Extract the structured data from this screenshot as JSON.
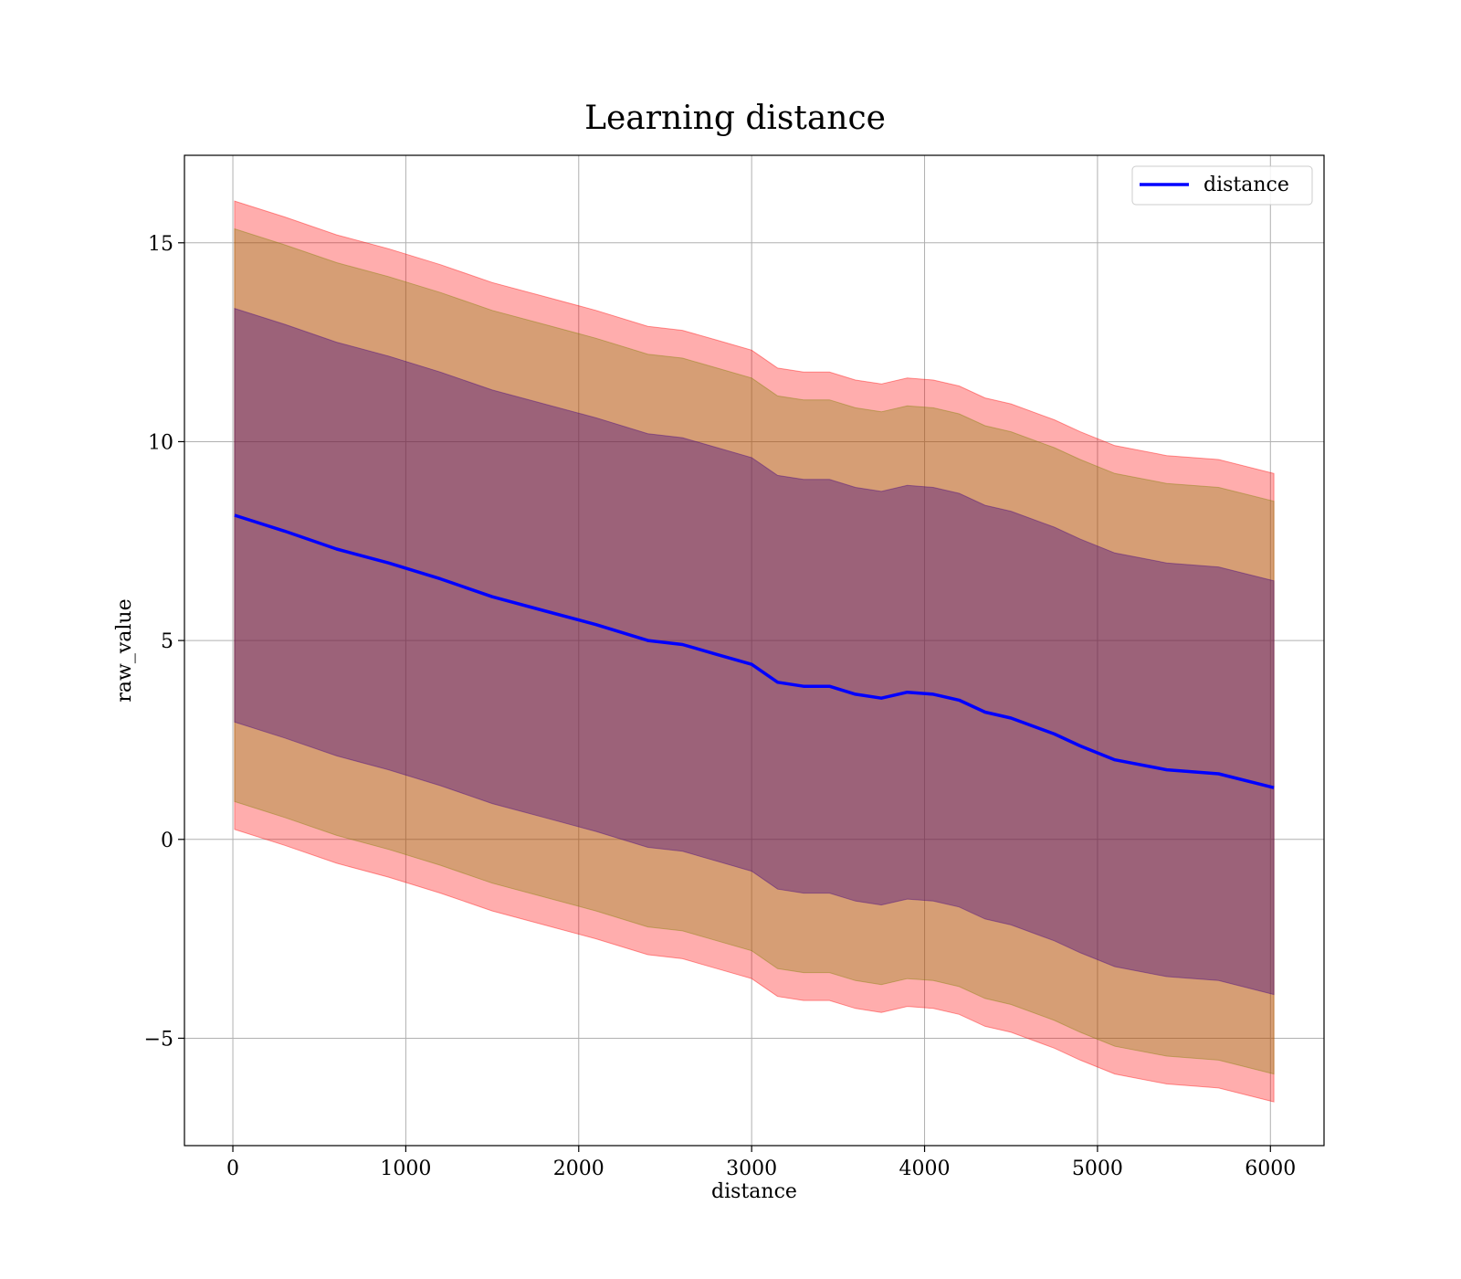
{
  "chart_data": {
    "type": "line",
    "title": "Learning distance",
    "xlabel": "distance",
    "ylabel": "raw_value",
    "xlim": [
      -280,
      6310
    ],
    "ylim": [
      -7.7,
      17.2
    ],
    "xticks": [
      0,
      1000,
      2000,
      3000,
      4000,
      5000,
      6000
    ],
    "yticks": [
      -5,
      0,
      5,
      10,
      15
    ],
    "ytick_labels": [
      "−5",
      "0",
      "5",
      "10",
      "15"
    ],
    "grid": true,
    "legend_position": "top-right",
    "series": [
      {
        "name": "distance",
        "color": "#0000ff",
        "x": [
          10,
          300,
          600,
          900,
          1200,
          1500,
          1800,
          2100,
          2400,
          2600,
          2800,
          3000,
          3150,
          3300,
          3450,
          3600,
          3750,
          3900,
          4050,
          4200,
          4350,
          4500,
          4750,
          4900,
          5100,
          5400,
          5700,
          6020
        ],
        "y": [
          8.15,
          7.75,
          7.3,
          6.95,
          6.55,
          6.1,
          5.75,
          5.4,
          5.0,
          4.9,
          4.65,
          4.4,
          3.95,
          3.85,
          3.85,
          3.65,
          3.55,
          3.7,
          3.65,
          3.5,
          3.2,
          3.05,
          2.65,
          2.35,
          2.0,
          1.75,
          1.65,
          1.3
        ]
      }
    ],
    "bands": [
      {
        "color": "#ff0000",
        "opacity": 0.32,
        "offset_upper": 7.9,
        "offset_lower": 7.9
      },
      {
        "color": "#808000",
        "opacity": 0.32,
        "offset_upper": 7.2,
        "offset_lower": 7.2
      },
      {
        "color": "#400080",
        "opacity": 0.38,
        "offset_upper": 5.2,
        "offset_lower": 5.2
      }
    ]
  }
}
